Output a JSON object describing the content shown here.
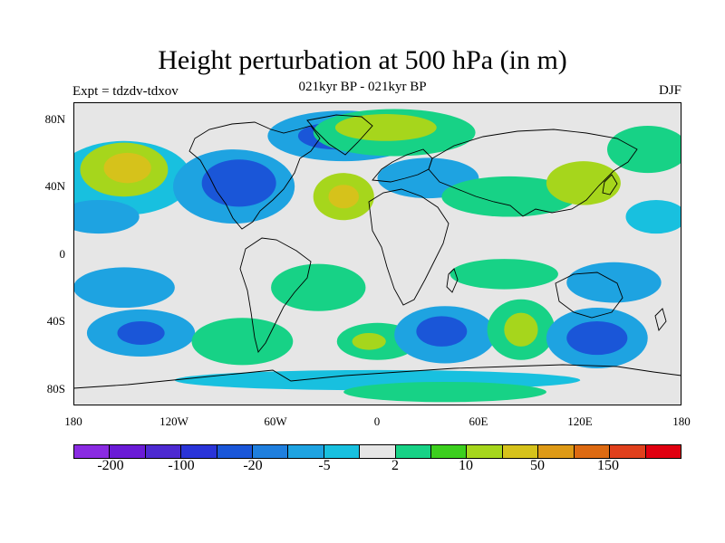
{
  "title": "Height perturbation at 500 hPa (in m)",
  "subtitle": "021kyr BP - 021kyr BP",
  "experiment": "Expt = tdzdv-tdxov",
  "season": "DJF",
  "map": {
    "y_axis_labels": [
      "80N",
      "40N",
      "0",
      "40S",
      "80S"
    ],
    "x_axis_labels": [
      "180",
      "120W",
      "60W",
      "0",
      "60E",
      "120E",
      "180"
    ],
    "lon_range": [
      -180,
      180
    ],
    "lat_range": [
      -90,
      90
    ],
    "background_color": "#e6e6e6",
    "coastline_color": "#000000"
  },
  "colorbar": {
    "colors": [
      "#8a2be2",
      "#6a1bd6",
      "#4d2ad1",
      "#2a34d8",
      "#1a56d8",
      "#1f7fde",
      "#1ea3e1",
      "#18c0df",
      "#e6e6e6",
      "#17d286",
      "#3ccf1e",
      "#a6d61c",
      "#d6c21b",
      "#de9a16",
      "#dd6a12",
      "#e0401c",
      "#e00010"
    ],
    "labels": [
      "-200",
      "-100",
      "-20",
      "-5",
      "2",
      "10",
      "50",
      "150"
    ]
  },
  "anomaly_regions": [
    {
      "level": "0",
      "color": "#18c0df",
      "lon": -150,
      "lat": 45,
      "rx": 40,
      "ry": 22
    },
    {
      "level": "+10",
      "color": "#a6d61c",
      "lon": -150,
      "lat": 50,
      "rx": 26,
      "ry": 16
    },
    {
      "level": "+50",
      "color": "#d6c21b",
      "lon": -148,
      "lat": 51,
      "rx": 14,
      "ry": 9
    },
    {
      "level": "-5",
      "color": "#1ea3e1",
      "lon": -165,
      "lat": 22,
      "rx": 24,
      "ry": 10
    },
    {
      "level": "-5",
      "color": "#1ea3e1",
      "lon": -85,
      "lat": 40,
      "rx": 36,
      "ry": 22
    },
    {
      "level": "-20",
      "color": "#1a56d8",
      "lon": -82,
      "lat": 42,
      "rx": 22,
      "ry": 14
    },
    {
      "level": "-5",
      "color": "#1ea3e1",
      "lon": -20,
      "lat": 70,
      "rx": 45,
      "ry": 15
    },
    {
      "level": "-20",
      "color": "#1a56d8",
      "lon": -25,
      "lat": 70,
      "rx": 22,
      "ry": 8
    },
    {
      "level": "+10",
      "color": "#a6d61c",
      "lon": -20,
      "lat": 34,
      "rx": 18,
      "ry": 14
    },
    {
      "level": "+50",
      "color": "#d6c21b",
      "lon": -20,
      "lat": 34,
      "rx": 9,
      "ry": 7
    },
    {
      "level": "+2",
      "color": "#17d286",
      "lon": 10,
      "lat": 72,
      "rx": 48,
      "ry": 14
    },
    {
      "level": "+10",
      "color": "#a6d61c",
      "lon": 5,
      "lat": 75,
      "rx": 30,
      "ry": 8
    },
    {
      "level": "-5",
      "color": "#1ea3e1",
      "lon": 30,
      "lat": 45,
      "rx": 30,
      "ry": 12
    },
    {
      "level": "+2",
      "color": "#17d286",
      "lon": 78,
      "lat": 34,
      "rx": 40,
      "ry": 12
    },
    {
      "level": "+10",
      "color": "#a6d61c",
      "lon": 122,
      "lat": 42,
      "rx": 22,
      "ry": 13
    },
    {
      "level": "+2",
      "color": "#17d286",
      "lon": 160,
      "lat": 62,
      "rx": 24,
      "ry": 14
    },
    {
      "level": "-5",
      "color": "#18c0df",
      "lon": 165,
      "lat": 22,
      "rx": 18,
      "ry": 10
    },
    {
      "level": "-5",
      "color": "#1ea3e1",
      "lon": -150,
      "lat": -20,
      "rx": 30,
      "ry": 12
    },
    {
      "level": "+2",
      "color": "#17d286",
      "lon": -35,
      "lat": -20,
      "rx": 28,
      "ry": 14
    },
    {
      "level": "+2",
      "color": "#17d286",
      "lon": 75,
      "lat": -12,
      "rx": 32,
      "ry": 9
    },
    {
      "level": "-5",
      "color": "#1ea3e1",
      "lon": 140,
      "lat": -17,
      "rx": 28,
      "ry": 12
    },
    {
      "level": "-5",
      "color": "#1ea3e1",
      "lon": -140,
      "lat": -47,
      "rx": 32,
      "ry": 14
    },
    {
      "level": "-20",
      "color": "#1a56d8",
      "lon": -140,
      "lat": -47,
      "rx": 14,
      "ry": 7
    },
    {
      "level": "+2",
      "color": "#17d286",
      "lon": -80,
      "lat": -52,
      "rx": 30,
      "ry": 14
    },
    {
      "level": "+2",
      "color": "#17d286",
      "lon": 0,
      "lat": -52,
      "rx": 24,
      "ry": 11
    },
    {
      "level": "+10",
      "color": "#a6d61c",
      "lon": -5,
      "lat": -52,
      "rx": 10,
      "ry": 5
    },
    {
      "level": "-5",
      "color": "#1ea3e1",
      "lon": 40,
      "lat": -48,
      "rx": 30,
      "ry": 17
    },
    {
      "level": "-20",
      "color": "#1a56d8",
      "lon": 38,
      "lat": -46,
      "rx": 15,
      "ry": 9
    },
    {
      "level": "+2",
      "color": "#17d286",
      "lon": 85,
      "lat": -45,
      "rx": 20,
      "ry": 18
    },
    {
      "level": "+10",
      "color": "#a6d61c",
      "lon": 85,
      "lat": -45,
      "rx": 10,
      "ry": 10
    },
    {
      "level": "-5",
      "color": "#1ea3e1",
      "lon": 130,
      "lat": -50,
      "rx": 30,
      "ry": 18
    },
    {
      "level": "-20",
      "color": "#1a56d8",
      "lon": 130,
      "lat": -50,
      "rx": 18,
      "ry": 10
    },
    {
      "level": "-5",
      "color": "#18c0df",
      "lon": 0,
      "lat": -75,
      "rx": 120,
      "ry": 6
    },
    {
      "level": "+2",
      "color": "#17d286",
      "lon": 40,
      "lat": -82,
      "rx": 60,
      "ry": 6
    }
  ]
}
